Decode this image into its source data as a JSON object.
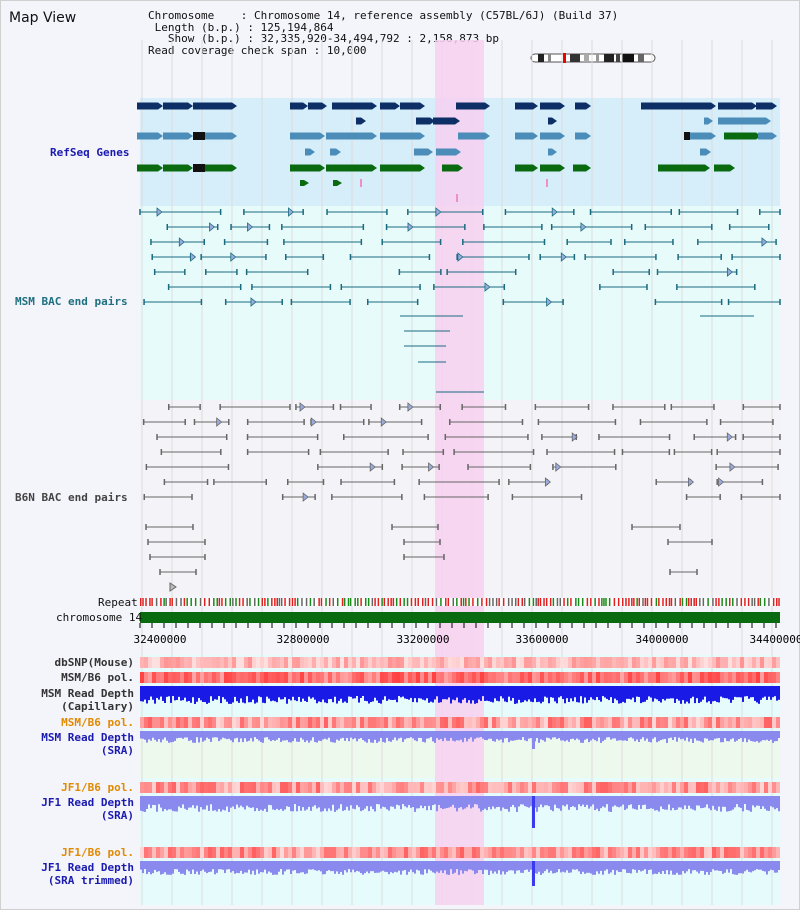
{
  "title": "Map View",
  "info": {
    "chromosome_key": "Chromosome",
    "chromosome_value": ": Chromosome 14, reference assembly (C57BL/6J) (Build 37)",
    "length_key": "Length (b.p.)",
    "length_value": ": 125,194,864",
    "show_key": "Show (b.p.)",
    "show_value": ": 32,335,920-34,494,792 : 2,158,873 bp",
    "coverage_key": "Read coverage check span",
    "coverage_value": ": 10,000"
  },
  "tracks": {
    "refseq": "RefSeq Genes",
    "msm_bac": "MSM BAC end pairs",
    "b6n_bac": "B6N BAC end pairs",
    "repeat": "Repeat",
    "chromosome": "chromosome 14",
    "dbsnp": "dbSNP(Mouse)",
    "msm_b6_pol_1": "MSM/B6 pol.",
    "msm_depth_cap_1": "MSM Read Depth",
    "msm_depth_cap_2": "(Capillary)",
    "msm_b6_pol_2": "MSM/B6 pol.",
    "msm_depth_sra_1": "MSM Read Depth",
    "msm_depth_sra_2": "(SRA)",
    "jf1_b6_pol_1": "JF1/B6 pol.",
    "jf1_depth_sra_1": "JF1 Read Depth",
    "jf1_depth_sra_2": "(SRA)",
    "jf1_b6_pol_2": "JF1/B6 pol.",
    "jf1_depth_trim_1": "JF1 Read Depth",
    "jf1_depth_trim_2": "(SRA trimmed)"
  },
  "axis": {
    "ticks": [
      "32400000",
      "32800000",
      "33200000",
      "33600000",
      "34000000",
      "34400000"
    ]
  },
  "colors": {
    "refseq_dark": "#0d2f66",
    "refseq_mid": "#4b8db8",
    "refseq_green": "#0a6a10",
    "msm_teal": "#1a6b80",
    "b6n_grey": "#666666",
    "highlight": "#f7d0f0",
    "chromosome_bar": "#0a6a10",
    "depth_blue": "#1a1ae6",
    "depth_light": "#8a8aee",
    "label_blue": "#1a1ab0",
    "label_teal": "#207080",
    "label_orange": "#e08a00"
  }
}
